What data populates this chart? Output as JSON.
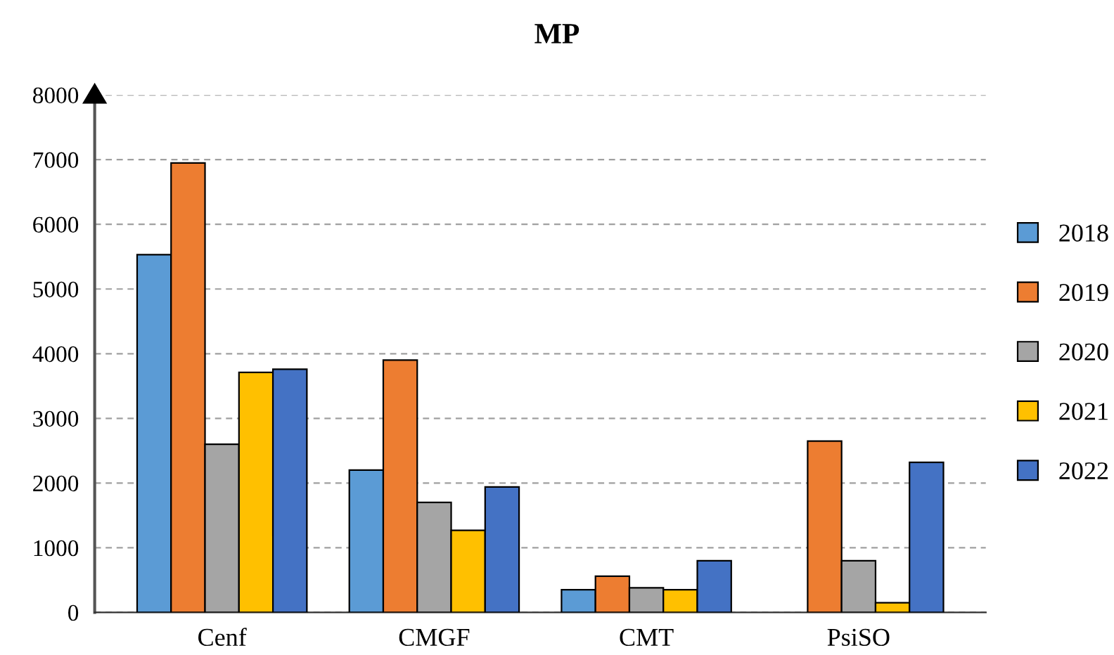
{
  "chart_data": {
    "type": "bar",
    "title": "MP",
    "categories": [
      "Cenf",
      "CMGF",
      "CMT",
      "PsiSO"
    ],
    "series": [
      {
        "name": "2018",
        "color": "#5b9bd5",
        "values": [
          5530,
          2200,
          350,
          null
        ]
      },
      {
        "name": "2019",
        "color": "#ed7d31",
        "values": [
          6950,
          3900,
          560,
          2650
        ]
      },
      {
        "name": "2020",
        "color": "#a5a5a5",
        "values": [
          2600,
          1700,
          380,
          800
        ]
      },
      {
        "name": "2021",
        "color": "#ffc000",
        "values": [
          3710,
          1270,
          350,
          150
        ]
      },
      {
        "name": "2022",
        "color": "#4472c4",
        "values": [
          3760,
          1940,
          800,
          2320
        ]
      }
    ],
    "ylim": [
      0,
      8000
    ],
    "yticks": [
      0,
      1000,
      2000,
      3000,
      4000,
      5000,
      6000,
      7000,
      8000
    ],
    "grid": "y",
    "legend": "right"
  }
}
